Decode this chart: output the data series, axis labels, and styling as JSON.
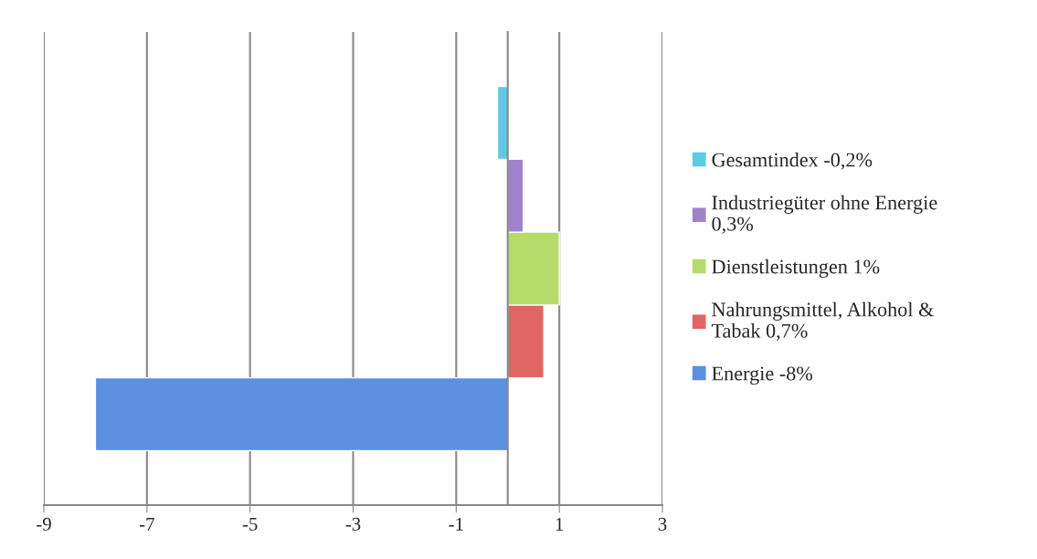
{
  "chart_data": {
    "type": "bar",
    "orientation": "horizontal",
    "categories": [
      null
    ],
    "series": [
      {
        "name": "Energie -8%",
        "color": "#5b8fe0",
        "values": [
          -8
        ]
      },
      {
        "name": "Nahrungsmittel, Alkohol &\nTabak 0,7%",
        "color": "#e06565",
        "values": [
          0.7
        ]
      },
      {
        "name": "Dienstleistungen 1%",
        "color": "#b5dc6a",
        "values": [
          1
        ]
      },
      {
        "name": "Industriegüter ohne Energie\n0,3%",
        "color": "#9f82cc",
        "values": [
          0.3
        ]
      },
      {
        "name": "Gesamtindex -0,2%",
        "color": "#5ccbe3",
        "values": [
          -0.2
        ]
      }
    ],
    "xlim": [
      -9,
      3
    ],
    "xticks": [
      -9,
      -7,
      -5,
      -3,
      -1,
      1,
      3
    ],
    "grid": "x",
    "legend": "right"
  }
}
